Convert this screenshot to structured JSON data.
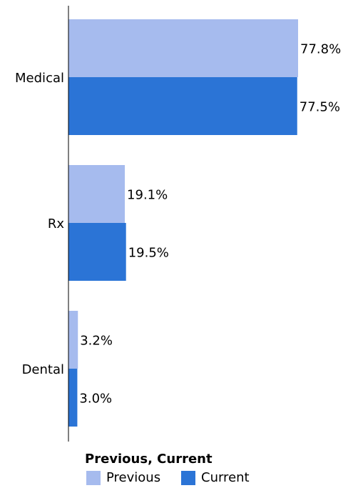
{
  "chart_data": {
    "type": "bar",
    "orientation": "horizontal",
    "categories": [
      "Medical",
      "Rx",
      "Dental"
    ],
    "series": [
      {
        "name": "Previous",
        "values": [
          77.8,
          19.1,
          3.2
        ],
        "labels": [
          "77.8%",
          "19.1%",
          "3.2%"
        ],
        "color": "#a6bbee"
      },
      {
        "name": "Current",
        "values": [
          77.5,
          19.5,
          3.0
        ],
        "labels": [
          "77.5%",
          "19.5%",
          "3.0%"
        ],
        "color": "#2b74d6"
      }
    ],
    "xlim": [
      0,
      100
    ],
    "legend": {
      "title": "Previous, Current",
      "position": "bottom"
    },
    "grid": false
  }
}
